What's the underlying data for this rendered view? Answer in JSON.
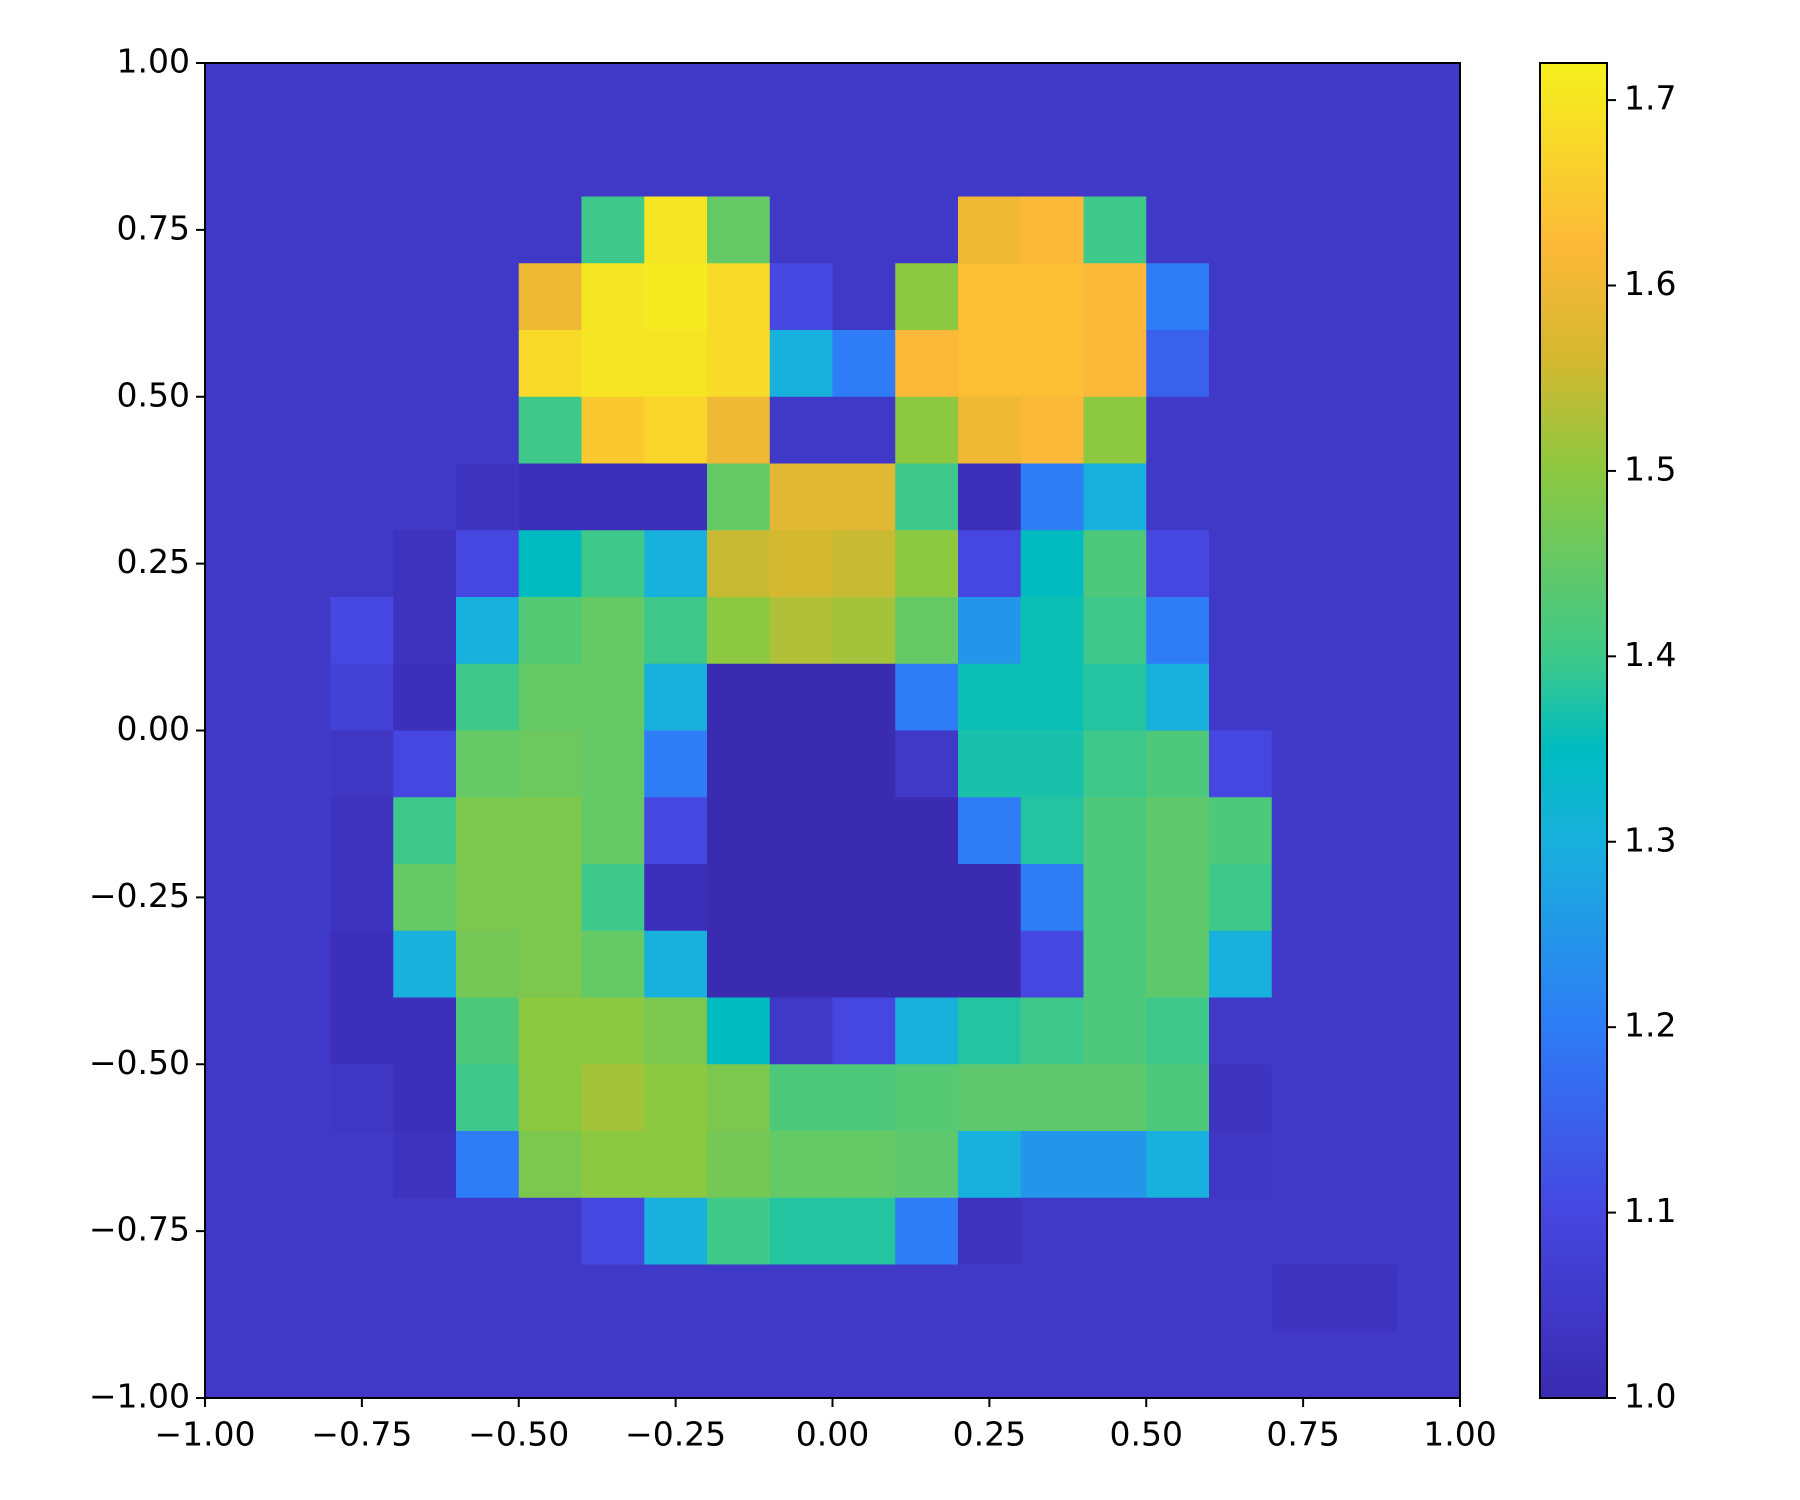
{
  "chart_data": {
    "type": "heatmap",
    "xlim": [
      -1,
      1
    ],
    "ylim": [
      -1,
      1
    ],
    "xticks": [
      {
        "value": -1,
        "label": "−1.00"
      },
      {
        "value": -0.75,
        "label": "−0.75"
      },
      {
        "value": -0.5,
        "label": "−0.50"
      },
      {
        "value": -0.25,
        "label": "−0.25"
      },
      {
        "value": 0,
        "label": "0.00"
      },
      {
        "value": 0.25,
        "label": "0.25"
      },
      {
        "value": 0.5,
        "label": "0.50"
      },
      {
        "value": 0.75,
        "label": "0.75"
      },
      {
        "value": 1,
        "label": "1.00"
      }
    ],
    "yticks": [
      {
        "value": -1,
        "label": "−1.00"
      },
      {
        "value": -0.75,
        "label": "−0.75"
      },
      {
        "value": -0.5,
        "label": "−0.50"
      },
      {
        "value": -0.25,
        "label": "−0.25"
      },
      {
        "value": 0,
        "label": "0.00"
      },
      {
        "value": 0.25,
        "label": "0.25"
      },
      {
        "value": 0.5,
        "label": "0.50"
      },
      {
        "value": 0.75,
        "label": "0.75"
      },
      {
        "value": 1,
        "label": "1.00"
      }
    ],
    "clim": [
      1.0,
      1.72
    ],
    "cticks": [
      {
        "value": 1.0,
        "label": "1.0"
      },
      1.1,
      1.2,
      1.3,
      1.4,
      1.5,
      1.6,
      1.7
    ],
    "colormap": [
      {
        "value": 1.0,
        "color": "#3a2bb0"
      },
      {
        "value": 1.1,
        "color": "#4646e0"
      },
      {
        "value": 1.2,
        "color": "#2e7cf6"
      },
      {
        "value": 1.3,
        "color": "#18b0dc"
      },
      {
        "value": 1.35,
        "color": "#00bcc0"
      },
      {
        "value": 1.4,
        "color": "#3ec98a"
      },
      {
        "value": 1.5,
        "color": "#8cc840"
      },
      {
        "value": 1.56,
        "color": "#d4b830"
      },
      {
        "value": 1.62,
        "color": "#fcb838"
      },
      {
        "value": 1.72,
        "color": "#f5f01e"
      }
    ],
    "z": [
      [
        1.05,
        1.05,
        1.05,
        1.05,
        1.05,
        1.05,
        1.05,
        1.05,
        1.05,
        1.05,
        1.05,
        1.05,
        1.05,
        1.05,
        1.05,
        1.05,
        1.05,
        1.05,
        1.05,
        1.05
      ],
      [
        1.05,
        1.05,
        1.05,
        1.05,
        1.05,
        1.05,
        1.05,
        1.05,
        1.05,
        1.05,
        1.05,
        1.05,
        1.05,
        1.05,
        1.05,
        1.05,
        1.05,
        1.05,
        1.05,
        1.05
      ],
      [
        1.05,
        1.05,
        1.05,
        1.05,
        1.05,
        1.05,
        1.4,
        1.7,
        1.45,
        1.05,
        1.05,
        1.05,
        1.6,
        1.62,
        1.4,
        1.05,
        1.05,
        1.05,
        1.05,
        1.05
      ],
      [
        1.05,
        1.05,
        1.05,
        1.05,
        1.05,
        1.6,
        1.7,
        1.71,
        1.68,
        1.1,
        1.05,
        1.5,
        1.63,
        1.63,
        1.62,
        1.2,
        1.05,
        1.05,
        1.05,
        1.05
      ],
      [
        1.05,
        1.05,
        1.05,
        1.05,
        1.05,
        1.68,
        1.7,
        1.7,
        1.68,
        1.3,
        1.2,
        1.62,
        1.63,
        1.63,
        1.62,
        1.15,
        1.05,
        1.05,
        1.05,
        1.05
      ],
      [
        1.05,
        1.05,
        1.05,
        1.05,
        1.05,
        1.4,
        1.65,
        1.67,
        1.6,
        1.05,
        1.05,
        1.5,
        1.6,
        1.62,
        1.5,
        1.05,
        1.05,
        1.05,
        1.05,
        1.05
      ],
      [
        1.05,
        1.05,
        1.05,
        1.05,
        1.03,
        1.02,
        1.02,
        1.02,
        1.45,
        1.58,
        1.58,
        1.4,
        1.02,
        1.2,
        1.3,
        1.05,
        1.05,
        1.05,
        1.05,
        1.05
      ],
      [
        1.05,
        1.05,
        1.05,
        1.03,
        1.1,
        1.35,
        1.4,
        1.3,
        1.55,
        1.56,
        1.55,
        1.5,
        1.1,
        1.35,
        1.42,
        1.1,
        1.05,
        1.05,
        1.05,
        1.05
      ],
      [
        1.05,
        1.05,
        1.1,
        1.03,
        1.3,
        1.43,
        1.45,
        1.4,
        1.5,
        1.53,
        1.52,
        1.45,
        1.25,
        1.36,
        1.4,
        1.2,
        1.05,
        1.05,
        1.05,
        1.05
      ],
      [
        1.05,
        1.05,
        1.08,
        1.02,
        1.4,
        1.45,
        1.45,
        1.3,
        1.0,
        1.0,
        1.0,
        1.2,
        1.36,
        1.36,
        1.38,
        1.3,
        1.05,
        1.05,
        1.05,
        1.05
      ],
      [
        1.05,
        1.05,
        1.04,
        1.1,
        1.45,
        1.46,
        1.45,
        1.2,
        1.0,
        1.0,
        1.0,
        1.05,
        1.37,
        1.37,
        1.4,
        1.42,
        1.1,
        1.05,
        1.05,
        1.05
      ],
      [
        1.05,
        1.05,
        1.03,
        1.4,
        1.48,
        1.48,
        1.45,
        1.1,
        1.0,
        1.0,
        1.0,
        1.0,
        1.2,
        1.38,
        1.42,
        1.44,
        1.42,
        1.05,
        1.05,
        1.05
      ],
      [
        1.05,
        1.05,
        1.03,
        1.45,
        1.48,
        1.48,
        1.4,
        1.02,
        1.0,
        1.0,
        1.0,
        1.0,
        1.0,
        1.2,
        1.42,
        1.44,
        1.4,
        1.05,
        1.05,
        1.05
      ],
      [
        1.05,
        1.05,
        1.02,
        1.3,
        1.47,
        1.48,
        1.45,
        1.3,
        1.0,
        1.0,
        1.0,
        1.0,
        1.0,
        1.1,
        1.42,
        1.44,
        1.3,
        1.05,
        1.05,
        1.05
      ],
      [
        1.05,
        1.05,
        1.02,
        1.02,
        1.42,
        1.5,
        1.5,
        1.48,
        1.35,
        1.05,
        1.1,
        1.3,
        1.38,
        1.4,
        1.42,
        1.4,
        1.05,
        1.05,
        1.05,
        1.05
      ],
      [
        1.05,
        1.05,
        1.04,
        1.02,
        1.4,
        1.5,
        1.52,
        1.5,
        1.48,
        1.42,
        1.42,
        1.43,
        1.44,
        1.44,
        1.44,
        1.42,
        1.03,
        1.05,
        1.05,
        1.05
      ],
      [
        1.05,
        1.05,
        1.05,
        1.03,
        1.2,
        1.48,
        1.5,
        1.5,
        1.47,
        1.45,
        1.45,
        1.44,
        1.3,
        1.25,
        1.25,
        1.3,
        1.04,
        1.05,
        1.05,
        1.05
      ],
      [
        1.05,
        1.05,
        1.05,
        1.05,
        1.05,
        1.05,
        1.1,
        1.3,
        1.4,
        1.38,
        1.38,
        1.2,
        1.03,
        1.05,
        1.05,
        1.05,
        1.05,
        1.05,
        1.05,
        1.05
      ],
      [
        1.05,
        1.05,
        1.05,
        1.05,
        1.05,
        1.05,
        1.05,
        1.05,
        1.05,
        1.05,
        1.05,
        1.05,
        1.05,
        1.05,
        1.05,
        1.05,
        1.05,
        1.03,
        1.03,
        1.05
      ],
      [
        1.05,
        1.05,
        1.05,
        1.05,
        1.05,
        1.05,
        1.05,
        1.05,
        1.05,
        1.05,
        1.05,
        1.05,
        1.05,
        1.05,
        1.05,
        1.05,
        1.05,
        1.05,
        1.05,
        1.05
      ]
    ]
  }
}
